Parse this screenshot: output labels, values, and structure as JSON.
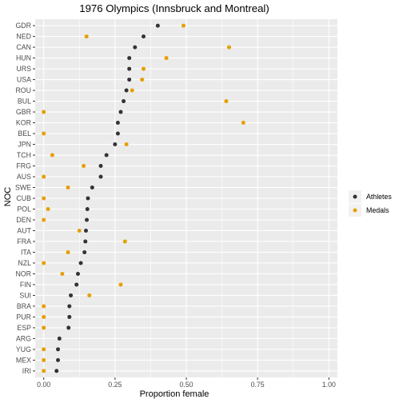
{
  "chart_data": {
    "type": "scatter",
    "title": "1976 Olympics (Innsbruck and Montreal)",
    "xlabel": "Proportion female",
    "ylabel": "NOC",
    "xlim": [
      -0.03,
      1.03
    ],
    "x_ticks": [
      "0.00",
      "0.25",
      "0.50",
      "0.75",
      "1.00"
    ],
    "x_tick_values": [
      0,
      0.25,
      0.5,
      0.75,
      1.0
    ],
    "grid": true,
    "legend_position": "right",
    "categories": [
      "GDR",
      "NED",
      "CAN",
      "HUN",
      "URS",
      "USA",
      "ROU",
      "BUL",
      "GBR",
      "KOR",
      "BEL",
      "JPN",
      "TCH",
      "FRG",
      "AUS",
      "SWE",
      "CUB",
      "POL",
      "DEN",
      "AUT",
      "FRA",
      "ITA",
      "NZL",
      "NOR",
      "FIN",
      "SUI",
      "BRA",
      "PUR",
      "ESP",
      "ARG",
      "YUG",
      "MEX",
      "IRI"
    ],
    "series": [
      {
        "name": "Athletes",
        "color": "#333333",
        "values": [
          0.4,
          0.35,
          0.32,
          0.3,
          0.3,
          0.3,
          0.29,
          0.28,
          0.27,
          0.26,
          0.26,
          0.25,
          0.22,
          0.2,
          0.2,
          0.17,
          0.155,
          0.153,
          0.151,
          0.148,
          0.146,
          0.143,
          0.13,
          0.12,
          0.115,
          0.095,
          0.09,
          0.09,
          0.087,
          0.055,
          0.05,
          0.05,
          0.045
        ]
      },
      {
        "name": "Medals",
        "color": "#E69F00",
        "values": [
          0.49,
          0.15,
          0.65,
          0.43,
          0.35,
          0.345,
          0.31,
          0.64,
          0.0,
          0.7,
          0.0,
          0.29,
          0.03,
          0.14,
          0.0,
          0.085,
          0.0,
          0.015,
          0.0,
          0.125,
          0.285,
          0.085,
          0.0,
          0.065,
          0.27,
          0.16,
          0.0,
          0.0,
          0.0,
          null,
          0.0,
          0.0,
          0.0
        ]
      }
    ]
  }
}
